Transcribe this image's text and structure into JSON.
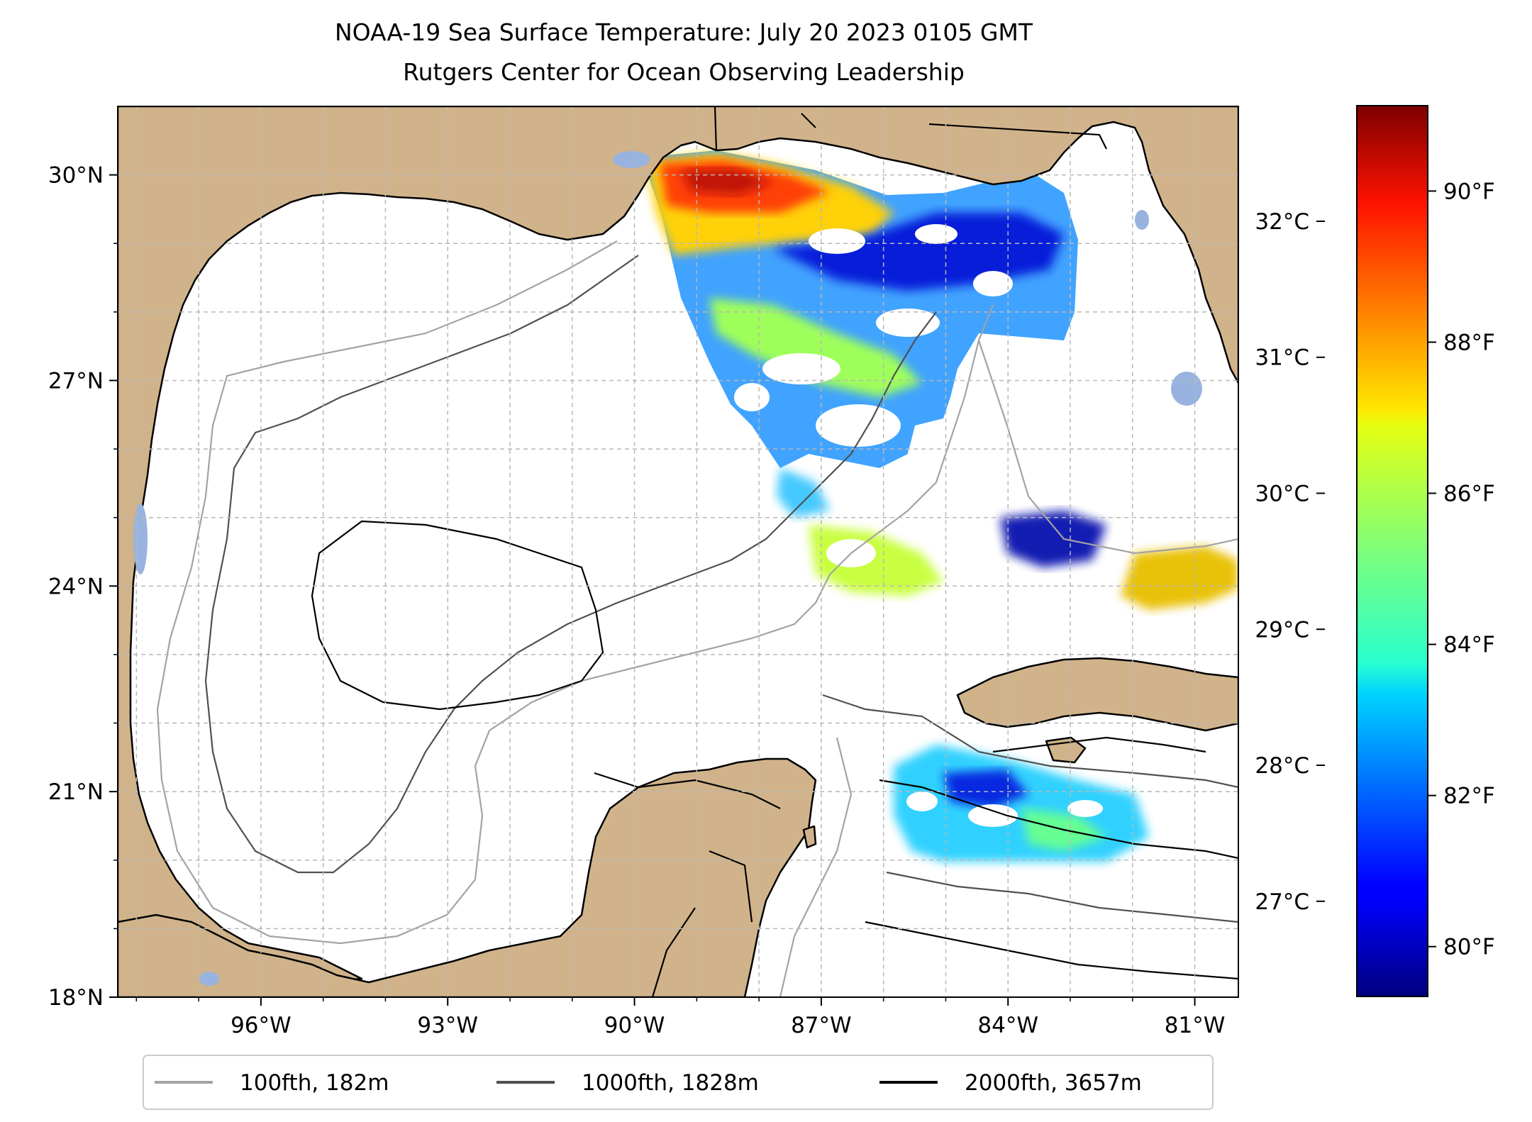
{
  "title": "NOAA-19 Sea Surface Temperature: July 20 2023 0105 GMT",
  "subtitle": "Rutgers Center for Ocean Observing Leadership",
  "map": {
    "lon_range": [
      -98.3,
      -80.3
    ],
    "lat_range": [
      18.0,
      31.0
    ],
    "lat_ticks": [
      {
        "value": 18,
        "label": "18°N"
      },
      {
        "value": 21,
        "label": "21°N"
      },
      {
        "value": 24,
        "label": "24°N"
      },
      {
        "value": 27,
        "label": "27°N"
      },
      {
        "value": 30,
        "label": "30°N"
      }
    ],
    "lon_ticks": [
      {
        "value": -96,
        "label": "96°W"
      },
      {
        "value": -93,
        "label": "93°W"
      },
      {
        "value": -90,
        "label": "90°W"
      },
      {
        "value": -87,
        "label": "87°W"
      },
      {
        "value": -84,
        "label": "84°W"
      },
      {
        "value": -81,
        "label": "81°W"
      }
    ],
    "colors": {
      "land": "#d1b38b",
      "water": "#ffffff",
      "lakes": "#98b3df",
      "grid": "#b8b8b8"
    }
  },
  "colorbar": {
    "colormap": "jet",
    "celsius_ticks": [
      {
        "value": 27,
        "label": "27°C"
      },
      {
        "value": 28,
        "label": "28°C"
      },
      {
        "value": 29,
        "label": "29°C"
      },
      {
        "value": 30,
        "label": "30°C"
      },
      {
        "value": 31,
        "label": "31°C"
      },
      {
        "value": 32,
        "label": "32°C"
      }
    ],
    "fahrenheit_ticks": [
      {
        "value": 80,
        "label": "80°F"
      },
      {
        "value": 82,
        "label": "82°F"
      },
      {
        "value": 84,
        "label": "84°F"
      },
      {
        "value": 86,
        "label": "86°F"
      },
      {
        "value": 88,
        "label": "88°F"
      },
      {
        "value": 90,
        "label": "90°F"
      }
    ]
  },
  "legend": {
    "items": [
      {
        "label": "100fth, 182m",
        "color": "#a3a3a3"
      },
      {
        "label": "1000fth, 1828m",
        "color": "#505050"
      },
      {
        "label": "2000fth, 3657m",
        "color": "#000000"
      }
    ]
  }
}
